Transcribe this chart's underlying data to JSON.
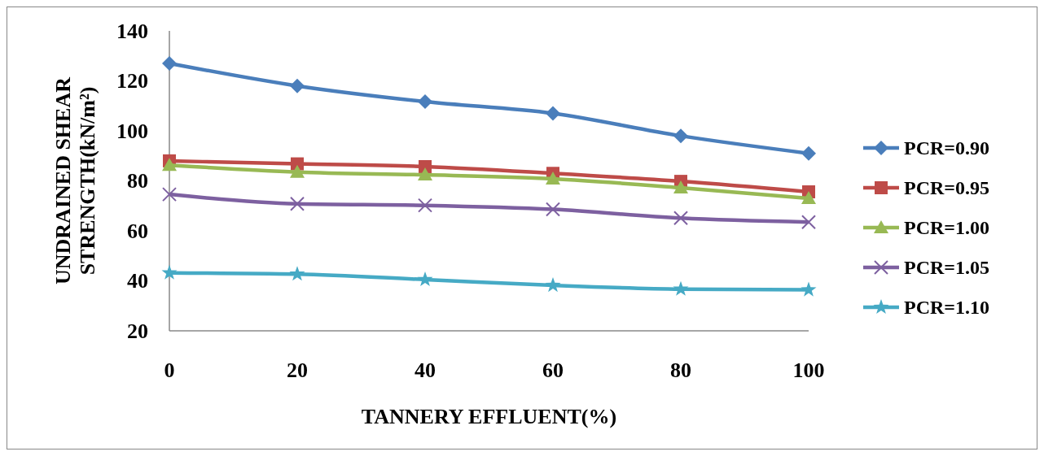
{
  "chart_data": {
    "type": "line",
    "xlabel": "TANNERY EFFLUENT(%)",
    "ylabel": "UNDRAINED SHEAR STRENGTH(kN/m²)",
    "x": [
      0,
      20,
      40,
      60,
      80,
      100
    ],
    "xlim": [
      0,
      100
    ],
    "xticks": [
      0,
      20,
      40,
      60,
      80,
      100
    ],
    "ylim": [
      20,
      140
    ],
    "yticks": [
      20,
      40,
      60,
      80,
      100,
      120,
      140
    ],
    "grid": false,
    "legend": "right",
    "series": [
      {
        "name": "PCR=0.90",
        "color": "#4a7ebb",
        "marker": "diamond",
        "values": [
          127,
          118,
          111.7,
          107,
          98,
          91
        ]
      },
      {
        "name": "PCR=0.95",
        "color": "#be4b48",
        "marker": "square",
        "values": [
          88,
          86.8,
          85.7,
          83,
          79.8,
          75.6
        ]
      },
      {
        "name": "PCR=1.00",
        "color": "#98b954",
        "marker": "triangle",
        "values": [
          86.3,
          83.5,
          82.4,
          80.8,
          77.2,
          73
        ]
      },
      {
        "name": "PCR=1.05",
        "color": "#7d60a0",
        "marker": "cross",
        "values": [
          74.6,
          70.8,
          70.2,
          68.6,
          65.1,
          63.5
        ]
      },
      {
        "name": "PCR=1.10",
        "color": "#46aac5",
        "marker": "star",
        "values": [
          43.2,
          42.7,
          40.5,
          38.2,
          36.7,
          36.4
        ]
      }
    ]
  }
}
